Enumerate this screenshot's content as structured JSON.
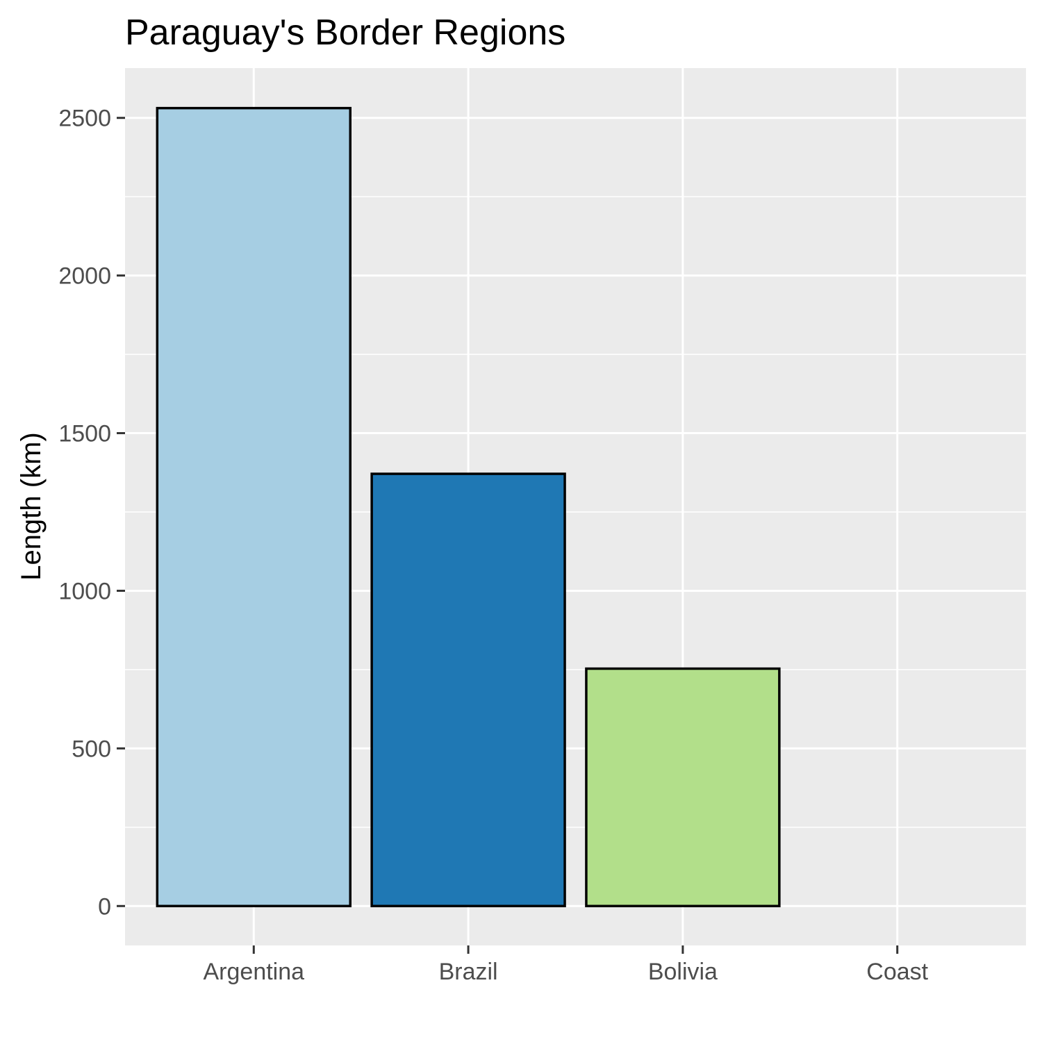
{
  "chart_data": {
    "type": "bar",
    "title": "Paraguay's Border Regions",
    "xlabel": "",
    "ylabel": "Length (km)",
    "categories": [
      "Argentina",
      "Brazil",
      "Bolivia",
      "Coast"
    ],
    "values": [
      2531,
      1371,
      753,
      0
    ],
    "colors": [
      "#a6cee3",
      "#1f78b4",
      "#b2df8a",
      "#33a02c"
    ],
    "ylim": [
      -125,
      2658
    ],
    "yticks": [
      0,
      500,
      1000,
      1500,
      2000,
      2500
    ],
    "yticklabels": [
      "0",
      "500",
      "1000",
      "1500",
      "2000",
      "2500"
    ],
    "grid": true,
    "panel_background": "#ebebeb",
    "bar_outline": "#000000"
  }
}
